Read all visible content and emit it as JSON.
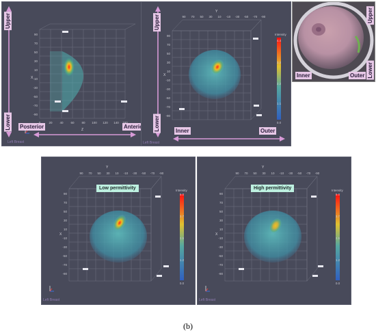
{
  "panels": {
    "side_view": {
      "upper": "Upper",
      "lower": "Lower",
      "posterior": "Posterior",
      "anterior": "Anterior",
      "axis_x": "X",
      "axis_z": "Z",
      "x_ticks": [
        "90",
        "70",
        "50",
        "30",
        "10",
        "-10",
        "-30",
        "-50",
        "-70",
        "-90"
      ],
      "z_ticks": [
        "0",
        "20",
        "40",
        "60",
        "80",
        "100",
        "120",
        "140",
        "160"
      ],
      "watermark": "Left Breast"
    },
    "front_view": {
      "upper": "Upper",
      "lower": "Lower",
      "inner": "Inner",
      "outer": "Outer",
      "axis_x": "X",
      "axis_y": "Y",
      "y_ticks": [
        "90",
        "70",
        "50",
        "30",
        "10",
        "-10",
        "-30",
        "-50",
        "-70",
        "-90"
      ],
      "x_ticks": [
        "90",
        "70",
        "50",
        "30",
        "10",
        "-10",
        "-30",
        "-50",
        "-70",
        "-90"
      ],
      "colorbar": {
        "title": "Intensity",
        "ticks": [
          "4.4",
          "3.3",
          "2.2",
          "1.1",
          "0.0"
        ]
      },
      "watermark": "Left Breast"
    },
    "photo": {
      "upper": "Upper",
      "lower": "Lower",
      "inner": "Inner",
      "outer": "Outer"
    },
    "low_perm": {
      "label": "Low permittivity",
      "axis_x": "X",
      "axis_y": "Y",
      "y_ticks": [
        "90",
        "70",
        "50",
        "30",
        "10",
        "-10",
        "-30",
        "-50",
        "-70",
        "-90"
      ],
      "x_ticks": [
        "90",
        "70",
        "50",
        "30",
        "10",
        "-10",
        "-30",
        "-50",
        "-70",
        "-90"
      ],
      "colorbar": {
        "title": "Intensity",
        "ticks": [
          "5.0",
          "3.7",
          "2.5",
          "1.2",
          "0.0"
        ]
      },
      "watermark": "Left Breast"
    },
    "high_perm": {
      "label": "High permittivity",
      "axis_x": "X",
      "axis_y": "Y",
      "y_ticks": [
        "90",
        "70",
        "50",
        "30",
        "10",
        "-10",
        "-30",
        "-50",
        "-70",
        "-90"
      ],
      "x_ticks": [
        "90",
        "70",
        "50",
        "30",
        "10",
        "-10",
        "-30",
        "-50",
        "-70",
        "-90"
      ],
      "colorbar": {
        "title": "Intensity",
        "ticks": [
          "5.0",
          "3.7",
          "2.5",
          "1.2",
          "0.0"
        ]
      },
      "watermark": "Left Breast"
    }
  },
  "caption": "(b)",
  "colors": {
    "panel_bg": "#484a5a",
    "tag_bg": "#e7c8e7",
    "arrow": "#d89ad8",
    "perm_bg": "#bdf0e0"
  }
}
